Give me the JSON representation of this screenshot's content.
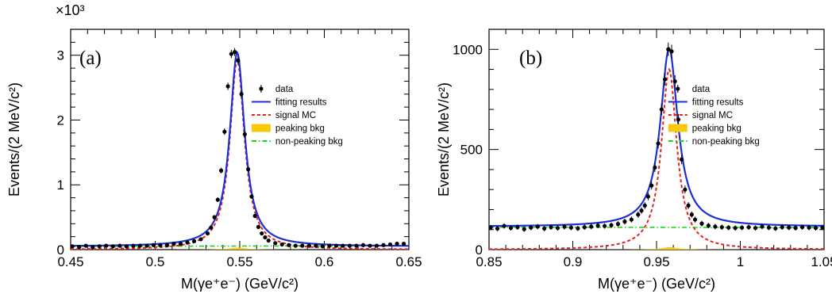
{
  "chart_data": [
    {
      "type": "line",
      "panel_label": "(a)",
      "xlabel": "M(γe⁺e⁻) (GeV/c²)",
      "ylabel": "Events/(2 MeV/c²)",
      "y_scale_label": "×10³",
      "xlim": [
        0.45,
        0.65
      ],
      "ylim": [
        0,
        3.4
      ],
      "x_ticks": [
        0.45,
        0.5,
        0.55,
        0.6,
        0.65
      ],
      "x_tick_labels": [
        "0.45",
        "0.5",
        "0.55",
        "0.6",
        "0.65"
      ],
      "y_ticks": [
        0,
        1,
        2,
        3
      ],
      "y_tick_labels": [
        "0",
        "1",
        "2",
        "3"
      ],
      "legend": {
        "position": "right",
        "entries": [
          {
            "label": "data",
            "style": "marker"
          },
          {
            "label": "fitting results",
            "style": "line",
            "color": "#1b2fd6"
          },
          {
            "label": "signal MC",
            "style": "dashed",
            "color": "#e8201c"
          },
          {
            "label": "peaking bkg",
            "style": "fill",
            "color": "#f7c90a"
          },
          {
            "label": "non-peaking bkg",
            "style": "dashdot",
            "color": "#1fd61f"
          }
        ]
      },
      "series": [
        {
          "name": "data",
          "x": [
            0.451,
            0.455,
            0.459,
            0.463,
            0.467,
            0.471,
            0.475,
            0.479,
            0.483,
            0.487,
            0.491,
            0.495,
            0.499,
            0.503,
            0.507,
            0.511,
            0.515,
            0.519,
            0.523,
            0.527,
            0.531,
            0.533,
            0.535,
            0.537,
            0.539,
            0.541,
            0.543,
            0.545,
            0.547,
            0.549,
            0.551,
            0.553,
            0.555,
            0.557,
            0.559,
            0.561,
            0.563,
            0.565,
            0.567,
            0.571,
            0.575,
            0.579,
            0.583,
            0.587,
            0.591,
            0.595,
            0.599,
            0.603,
            0.607,
            0.611,
            0.615,
            0.619,
            0.623,
            0.627,
            0.631,
            0.635,
            0.639,
            0.643,
            0.647
          ],
          "y": [
            0.05,
            0.04,
            0.06,
            0.04,
            0.05,
            0.06,
            0.05,
            0.06,
            0.05,
            0.06,
            0.06,
            0.06,
            0.07,
            0.07,
            0.07,
            0.09,
            0.09,
            0.11,
            0.13,
            0.16,
            0.25,
            0.34,
            0.5,
            0.77,
            1.22,
            1.82,
            2.52,
            3.02,
            3.05,
            2.92,
            2.4,
            1.78,
            1.24,
            0.82,
            0.52,
            0.35,
            0.25,
            0.19,
            0.14,
            0.1,
            0.08,
            0.07,
            0.06,
            0.06,
            0.06,
            0.06,
            0.05,
            0.06,
            0.06,
            0.06,
            0.06,
            0.06,
            0.07,
            0.06,
            0.06,
            0.07,
            0.08,
            0.09,
            0.09
          ]
        },
        {
          "name": "fitting results",
          "peak": 0.5485,
          "gamma": 0.0053,
          "amplitude": 2.99,
          "baseline": 0.05
        },
        {
          "name": "signal MC",
          "peak": 0.5485,
          "gamma": 0.0052,
          "amplitude": 2.93,
          "baseline": 0.0
        },
        {
          "name": "peaking bkg",
          "peak": 0.549,
          "gamma": 0.006,
          "amplitude": 0.03
        },
        {
          "name": "non-peaking bkg",
          "y0": 0.05,
          "y1": 0.06
        }
      ]
    },
    {
      "type": "line",
      "panel_label": "(b)",
      "xlabel": "M(γe⁺e⁻) (GeV/c²)",
      "ylabel": "Events/(2 MeV/c²)",
      "xlim": [
        0.85,
        1.05
      ],
      "ylim": [
        0,
        1100
      ],
      "x_ticks": [
        0.85,
        0.9,
        0.95,
        1.0,
        1.05
      ],
      "x_tick_labels": [
        "0.85",
        "0.9",
        "0.95",
        "1",
        "1.05"
      ],
      "y_ticks": [
        0,
        500,
        1000
      ],
      "y_tick_labels": [
        "0",
        "500",
        "1000"
      ],
      "legend": {
        "position": "right",
        "entries": [
          {
            "label": "data",
            "style": "marker"
          },
          {
            "label": "fitting results",
            "style": "line",
            "color": "#1b2fd6"
          },
          {
            "label": "signal MC",
            "style": "dashed",
            "color": "#e8201c"
          },
          {
            "label": "peaking bkg",
            "style": "fill",
            "color": "#f7c90a"
          },
          {
            "label": "non-peaking bkg",
            "style": "dashdot",
            "color": "#1fd61f"
          }
        ]
      },
      "series": [
        {
          "name": "data",
          "x": [
            0.851,
            0.855,
            0.859,
            0.863,
            0.867,
            0.871,
            0.875,
            0.879,
            0.883,
            0.887,
            0.891,
            0.895,
            0.899,
            0.903,
            0.907,
            0.911,
            0.915,
            0.919,
            0.923,
            0.927,
            0.931,
            0.935,
            0.939,
            0.941,
            0.943,
            0.945,
            0.947,
            0.949,
            0.951,
            0.953,
            0.955,
            0.957,
            0.959,
            0.961,
            0.963,
            0.965,
            0.967,
            0.969,
            0.971,
            0.973,
            0.977,
            0.981,
            0.985,
            0.989,
            0.993,
            0.997,
            1.001,
            1.005,
            1.009,
            1.013,
            1.017,
            1.021,
            1.025,
            1.029,
            1.033,
            1.037,
            1.041,
            1.045,
            1.049
          ],
          "y": [
            110,
            105,
            118,
            108,
            112,
            102,
            110,
            115,
            105,
            112,
            108,
            114,
            110,
            106,
            112,
            115,
            120,
            118,
            122,
            128,
            140,
            150,
            175,
            195,
            220,
            265,
            320,
            410,
            530,
            700,
            850,
            1000,
            990,
            840,
            650,
            450,
            300,
            220,
            175,
            150,
            130,
            120,
            115,
            112,
            110,
            108,
            110,
            112,
            108,
            115,
            110,
            106,
            112,
            110,
            108,
            112,
            110,
            108,
            110
          ]
        },
        {
          "name": "fitting results",
          "peak": 0.9575,
          "gamma": 0.0063,
          "amplitude": 890,
          "baseline": 115
        },
        {
          "name": "signal MC",
          "peak": 0.9575,
          "gamma": 0.0055,
          "amplitude": 900,
          "baseline": 0
        },
        {
          "name": "peaking bkg",
          "peak": 0.958,
          "gamma": 0.006,
          "amplitude": 12
        },
        {
          "name": "non-peaking bkg",
          "y0": 112,
          "y1": 110
        }
      ]
    }
  ]
}
